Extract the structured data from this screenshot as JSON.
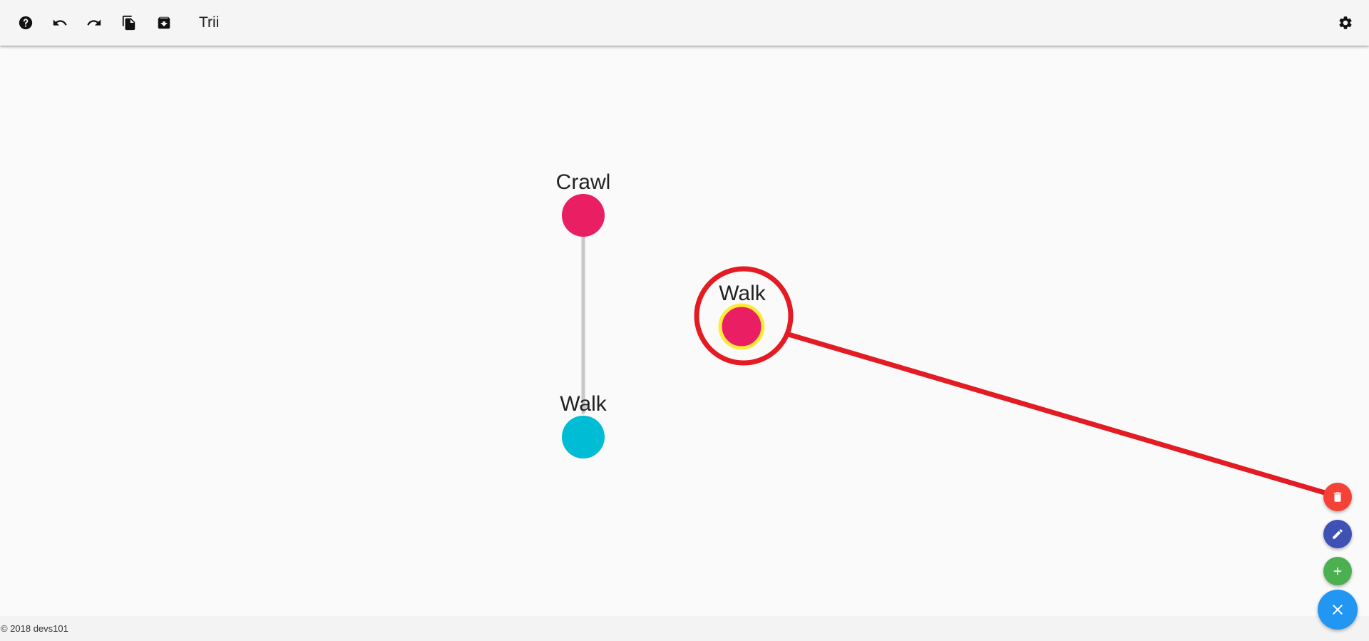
{
  "app": {
    "title": "Trii"
  },
  "toolbar": {
    "buttons": [
      {
        "name": "help-button",
        "icon": "help-icon"
      },
      {
        "name": "undo-button",
        "icon": "undo-icon"
      },
      {
        "name": "redo-button",
        "icon": "redo-icon"
      },
      {
        "name": "copy-button",
        "icon": "copy-icon"
      },
      {
        "name": "archive-button",
        "icon": "archive-icon"
      }
    ],
    "settings_icon": "gear-icon"
  },
  "graph": {
    "nodes": [
      {
        "id": "crawl",
        "label": "Crawl",
        "color": "#e91e63"
      },
      {
        "id": "walk-child",
        "label": "Walk",
        "color": "#00bcd4"
      },
      {
        "id": "walk-selected",
        "label": "Walk",
        "color": "#e91e63",
        "highlight": "#ffeb3b"
      }
    ],
    "edges": [
      {
        "from": "crawl",
        "to": "walk-child",
        "color": "#c8c8c8"
      }
    ],
    "annotation_color": "#e31b23"
  },
  "fabs": {
    "delete": {
      "icon": "trash-icon",
      "color": "#f44336"
    },
    "edit": {
      "icon": "pencil-icon",
      "color": "#3f51b5"
    },
    "add": {
      "icon": "plus-icon",
      "color": "#4caf50"
    },
    "close": {
      "icon": "close-icon",
      "color": "#2196f3"
    }
  },
  "footer": {
    "copyright": "© 2018 devs101"
  }
}
